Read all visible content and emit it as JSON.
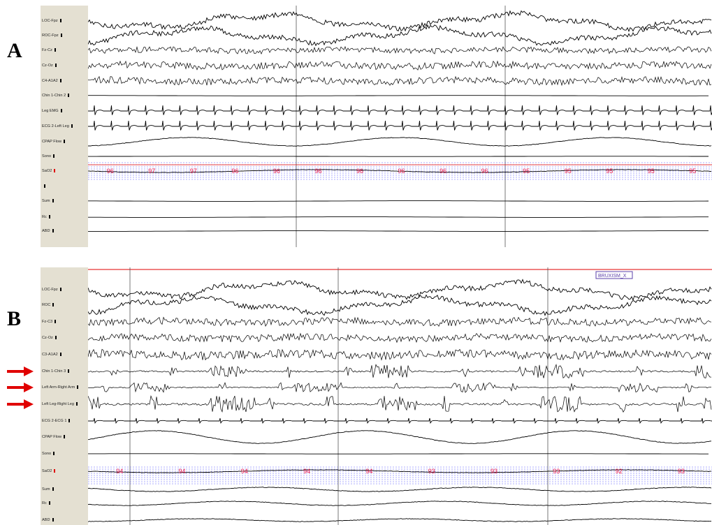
{
  "panels": [
    {
      "letter": "A",
      "channels": [
        {
          "label": "LOC-Fpz",
          "kind": "eeg",
          "amp": 14
        },
        {
          "label": "ROC-Fpz",
          "kind": "eeg",
          "amp": 14
        },
        {
          "label": "Fz-Cz",
          "kind": "fast",
          "amp": 4
        },
        {
          "label": "Cz-Oz",
          "kind": "fast",
          "amp": 5
        },
        {
          "label": "C4-A1A2",
          "kind": "fast",
          "amp": 5
        },
        {
          "label": "Chin 1-Chin 2",
          "kind": "flat",
          "amp": 0.3
        },
        {
          "label": "Leg EMG",
          "kind": "ecg",
          "amp": 8
        },
        {
          "label": "ECG 2-Left Leg",
          "kind": "ecg",
          "amp": 8
        },
        {
          "label": "CPAP Flow",
          "kind": "resp",
          "amp": 6
        },
        {
          "label": "Sono",
          "kind": "flat",
          "amp": 0.2
        },
        {
          "label": "SaO2",
          "kind": "spo2",
          "amp": 0,
          "mark": "red"
        },
        {
          "label": "",
          "kind": "none",
          "amp": 0
        },
        {
          "label": "Sum",
          "kind": "flat",
          "amp": 0.4
        },
        {
          "label": "Rc",
          "kind": "flat",
          "amp": 0.4
        },
        {
          "label": "ABD",
          "kind": "flat",
          "amp": 0.4
        }
      ],
      "sao2": [
        "96",
        "97",
        "97",
        "96",
        "96",
        "96",
        "96",
        "96",
        "96",
        "96",
        "95",
        "95",
        "95",
        "95",
        "95"
      ]
    },
    {
      "letter": "B",
      "annotation": "BRUXISM_X",
      "channels": [
        {
          "label": "LOC-Fpz",
          "kind": "eeg",
          "amp": 14
        },
        {
          "label": "ROC",
          "kind": "eeg",
          "amp": 14
        },
        {
          "label": "Fz-C3",
          "kind": "fast",
          "amp": 5
        },
        {
          "label": "Cz-Oz",
          "kind": "fast",
          "amp": 5
        },
        {
          "label": "C3-A1A2",
          "kind": "fast",
          "amp": 6
        },
        {
          "label": "Chin 1-Chin 3",
          "kind": "emg",
          "amp": 10,
          "arrow": true
        },
        {
          "label": "Left Arm-Right Arm",
          "kind": "emg",
          "amp": 7,
          "arrow": true
        },
        {
          "label": "Left Leg-Right Leg",
          "kind": "emg",
          "amp": 12,
          "arrow": true
        },
        {
          "label": "ECG 2-ECG 1",
          "kind": "ecgsmall",
          "amp": 4
        },
        {
          "label": "CPAP Flow",
          "kind": "resp",
          "amp": 9
        },
        {
          "label": "Sono",
          "kind": "flat",
          "amp": 0.2
        },
        {
          "label": "SaO2",
          "kind": "spo2",
          "amp": 0,
          "mark": "red"
        },
        {
          "label": "Sum",
          "kind": "resp",
          "amp": 3
        },
        {
          "label": "Rc",
          "kind": "resp",
          "amp": 3
        },
        {
          "label": "ABD",
          "kind": "resp",
          "amp": 2
        }
      ],
      "sao2": [
        "94",
        "94",
        "94",
        "94",
        "94",
        "93",
        "93",
        "93",
        "92",
        "93"
      ]
    }
  ],
  "chart_data": {
    "type": "line",
    "panels": [
      {
        "panel": "A",
        "series": [
          "LOC-Fpz",
          "ROC-Fpz",
          "Fz-Cz",
          "Cz-Oz",
          "C4-A1A2",
          "Chin 1-Chin 2",
          "Leg EMG",
          "ECG 2-Left Leg",
          "CPAP Flow",
          "Sono",
          "SaO2",
          "Sum",
          "Rc",
          "ABD"
        ],
        "sao2_values": [
          96,
          97,
          97,
          96,
          96,
          96,
          96,
          96,
          96,
          96,
          95,
          95,
          95,
          95,
          95
        ]
      },
      {
        "panel": "B",
        "series": [
          "LOC-Fpz",
          "ROC",
          "Fz-C3",
          "Cz-Oz",
          "C3-A1A2",
          "Chin 1-Chin 3",
          "Left Arm-Right Arm",
          "Left Leg-Right Leg",
          "ECG 2-ECG 1",
          "CPAP Flow",
          "Sono",
          "SaO2",
          "Sum",
          "Rc",
          "ABD"
        ],
        "sao2_values": [
          94,
          94,
          94,
          94,
          94,
          93,
          93,
          93,
          92,
          93
        ]
      }
    ],
    "colors": {
      "trace": "#000000",
      "sao2_text": "#e8174a",
      "sao2_grid": "#5a5aff",
      "ref_line": "#e00000",
      "annotation": "#5b3fa8"
    }
  }
}
